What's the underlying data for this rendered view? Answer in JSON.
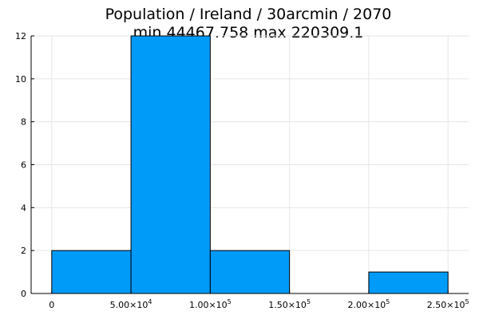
{
  "title_line1": "Population / Ireland / 30arcmin / 2070",
  "title_line2": "min 44467.758  max 220309.1",
  "colors": {
    "bar": "#009af9",
    "bar_edge": "#000000",
    "grid": "#e6e6e6",
    "axis": "#000000"
  },
  "chart_data": {
    "type": "bar",
    "title": "Population / Ireland / 30arcmin / 2070\nmin 44467.758  max 220309.1",
    "xlabel": "",
    "ylabel": "",
    "bins": [
      {
        "x0": 0,
        "x1": 50000,
        "count": 2
      },
      {
        "x0": 50000,
        "x1": 100000,
        "count": 12
      },
      {
        "x0": 100000,
        "x1": 150000,
        "count": 2
      },
      {
        "x0": 150000,
        "x1": 200000,
        "count": 0
      },
      {
        "x0": 200000,
        "x1": 250000,
        "count": 1
      }
    ],
    "xlim": [
      -13000,
      263000
    ],
    "ylim": [
      0,
      12
    ],
    "x_ticks": [
      {
        "value": 0,
        "mant": "0",
        "exp": ""
      },
      {
        "value": 50000,
        "mant": "5.00×10",
        "exp": "4"
      },
      {
        "value": 100000,
        "mant": "1.00×10",
        "exp": "5"
      },
      {
        "value": 150000,
        "mant": "1.50×10",
        "exp": "5"
      },
      {
        "value": 200000,
        "mant": "2.00×10",
        "exp": "5"
      },
      {
        "value": 250000,
        "mant": "2.50×10",
        "exp": "5"
      }
    ],
    "y_ticks": [
      0,
      2,
      4,
      6,
      8,
      10,
      12
    ],
    "grid": true,
    "legend": "none"
  }
}
